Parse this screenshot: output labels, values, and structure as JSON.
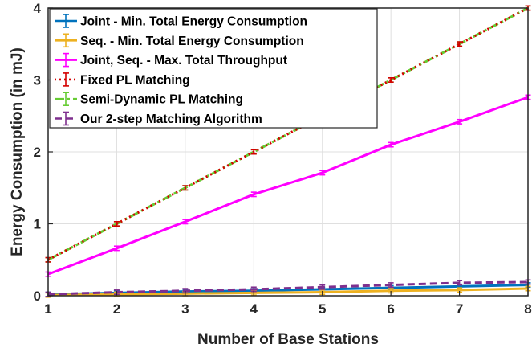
{
  "chart_data": {
    "type": "line",
    "title": "",
    "xlabel": "Number of Base Stations",
    "ylabel": "Energy Consumption (in mJ)",
    "xlim": [
      1,
      8
    ],
    "ylim": [
      0,
      4
    ],
    "xticks": [
      "1",
      "2",
      "3",
      "4",
      "5",
      "6",
      "7",
      "8"
    ],
    "yticks": [
      "0",
      "1",
      "2",
      "3",
      "4"
    ],
    "grid": true,
    "legend_position": "top-left",
    "x": [
      1,
      2,
      3,
      4,
      5,
      6,
      7,
      8
    ],
    "series": [
      {
        "name": "Joint - Min. Total Energy Consumption",
        "color": "#0072BD",
        "dash": "solid",
        "values": [
          0.02,
          0.04,
          0.06,
          0.07,
          0.09,
          0.11,
          0.13,
          0.15
        ]
      },
      {
        "name": "Seq. - Min. Total Energy Consumption",
        "color": "#EDB120",
        "dash": "solid",
        "values": [
          0.01,
          0.02,
          0.03,
          0.04,
          0.05,
          0.07,
          0.08,
          0.1
        ]
      },
      {
        "name": "Joint, Seq. - Max. Total Throughput",
        "color": "#FF00FF",
        "dash": "solid",
        "values": [
          0.3,
          0.66,
          1.03,
          1.41,
          1.71,
          2.1,
          2.42,
          2.76
        ]
      },
      {
        "name": "Fixed PL Matching",
        "color": "#D40000",
        "dash": "dotted",
        "values": [
          0.5,
          1.0,
          1.5,
          2.0,
          2.5,
          3.0,
          3.5,
          4.0
        ]
      },
      {
        "name": "Semi-Dynamic PL Matching",
        "color": "#66CC33",
        "dash": "dashdot",
        "values": [
          0.5,
          1.0,
          1.5,
          2.0,
          2.5,
          3.0,
          3.5,
          4.0
        ]
      },
      {
        "name": "Our 2-step Matching Algorithm",
        "color": "#7E2F8E",
        "dash": "dashed",
        "values": [
          0.02,
          0.05,
          0.07,
          0.09,
          0.12,
          0.15,
          0.18,
          0.19
        ]
      }
    ]
  }
}
